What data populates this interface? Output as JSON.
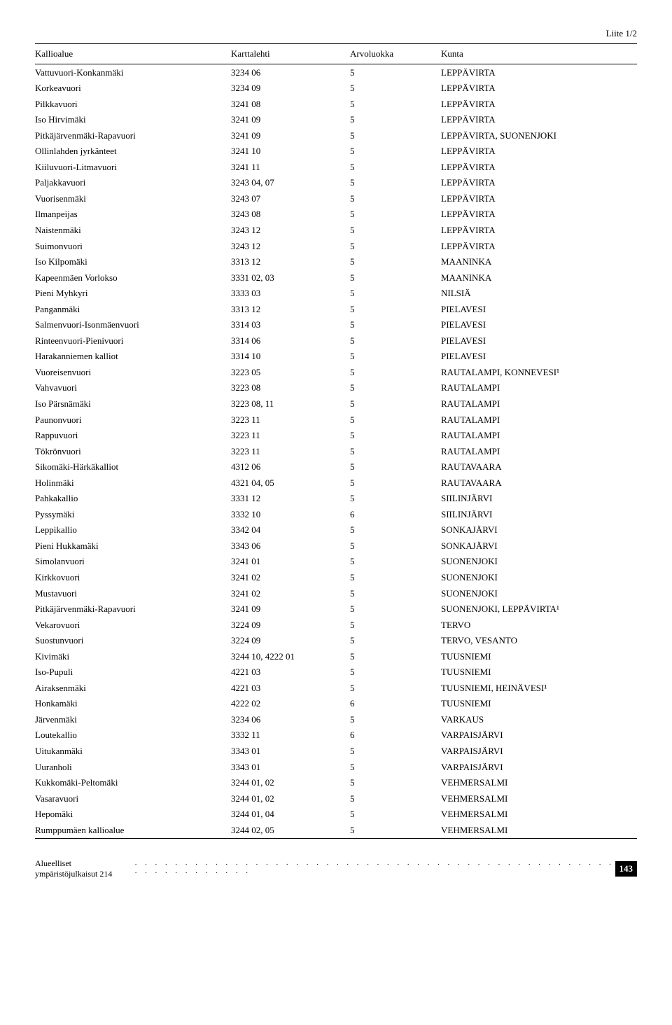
{
  "page_label": "Liite 1/2",
  "columns": [
    "Kallioalue",
    "Karttalehti",
    "Arvoluokka",
    "Kunta"
  ],
  "rows": [
    [
      "Vattuvuori-Konkanmäki",
      "3234 06",
      "5",
      "LEPPÄVIRTA"
    ],
    [
      "Korkeavuori",
      "3234 09",
      "5",
      "LEPPÄVIRTA"
    ],
    [
      "Pilkkavuori",
      "3241 08",
      "5",
      "LEPPÄVIRTA"
    ],
    [
      "Iso Hirvimäki",
      "3241 09",
      "5",
      "LEPPÄVIRTA"
    ],
    [
      "Pitkäjärvenmäki-Rapavuori",
      "3241 09",
      "5",
      "LEPPÄVIRTA, SUONENJOKI"
    ],
    [
      "Ollinlahden jyrkänteet",
      "3241 10",
      "5",
      "LEPPÄVIRTA"
    ],
    [
      "Kiiluvuori-Litmavuori",
      "3241 11",
      "5",
      "LEPPÄVIRTA"
    ],
    [
      "Paljakkavuori",
      "3243 04, 07",
      "5",
      "LEPPÄVIRTA"
    ],
    [
      "Vuorisenmäki",
      "3243 07",
      "5",
      "LEPPÄVIRTA"
    ],
    [
      "Ilmanpeijas",
      "3243 08",
      "5",
      "LEPPÄVIRTA"
    ],
    [
      "Naistenmäki",
      "3243 12",
      "5",
      "LEPPÄVIRTA"
    ],
    [
      "Suimonvuori",
      "3243 12",
      "5",
      "LEPPÄVIRTA"
    ],
    [
      "Iso Kilpomäki",
      "3313 12",
      "5",
      "MAANINKA"
    ],
    [
      "Kapeenmäen Vorlokso",
      "3331 02, 03",
      "5",
      "MAANINKA"
    ],
    [
      "Pieni Myhkyri",
      "3333 03",
      "5",
      "NILSIÄ"
    ],
    [
      "Panganmäki",
      "3313 12",
      "5",
      "PIELAVESI"
    ],
    [
      "Salmenvuori-Isonmäenvuori",
      "3314 03",
      "5",
      "PIELAVESI"
    ],
    [
      "Rinteenvuori-Pienivuori",
      "3314 06",
      "5",
      "PIELAVESI"
    ],
    [
      "Harakanniemen kalliot",
      "3314 10",
      "5",
      "PIELAVESI"
    ],
    [
      "Vuoreisenvuori",
      "3223 05",
      "5",
      "RAUTALAMPI, KONNEVESI¹"
    ],
    [
      "Vahvavuori",
      "3223 08",
      "5",
      "RAUTALAMPI"
    ],
    [
      "Iso Pärsnämäki",
      "3223 08, 11",
      "5",
      "RAUTALAMPI"
    ],
    [
      "Paunonvuori",
      "3223 11",
      "5",
      "RAUTALAMPI"
    ],
    [
      "Rappuvuori",
      "3223 11",
      "5",
      "RAUTALAMPI"
    ],
    [
      "Tökrönvuori",
      "3223 11",
      "5",
      "RAUTALAMPI"
    ],
    [
      "Sikomäki-Härkäkalliot",
      "4312 06",
      "5",
      "RAUTAVAARA"
    ],
    [
      "Holinmäki",
      "4321 04, 05",
      "5",
      "RAUTAVAARA"
    ],
    [
      "Pahkakallio",
      "3331 12",
      "5",
      "SIILINJÄRVI"
    ],
    [
      "Pyssymäki",
      "3332 10",
      "6",
      "SIILINJÄRVI"
    ],
    [
      "Leppikallio",
      "3342 04",
      "5",
      "SONKAJÄRVI"
    ],
    [
      "Pieni Hukkamäki",
      "3343 06",
      "5",
      "SONKAJÄRVI"
    ],
    [
      "Simolanvuori",
      "3241 01",
      "5",
      "SUONENJOKI"
    ],
    [
      "Kirkkovuori",
      "3241 02",
      "5",
      "SUONENJOKI"
    ],
    [
      "Mustavuori",
      "3241 02",
      "5",
      "SUONENJOKI"
    ],
    [
      "Pitkäjärvenmäki-Rapavuori",
      "3241 09",
      "5",
      "SUONENJOKI, LEPPÄVIRTA¹"
    ],
    [
      "Vekarovuori",
      "3224 09",
      "5",
      "TERVO"
    ],
    [
      "Suostunvuori",
      "3224 09",
      "5",
      "TERVO, VESANTO"
    ],
    [
      "Kivimäki",
      "3244 10, 4222 01",
      "5",
      "TUUSNIEMI"
    ],
    [
      "Iso-Pupuli",
      "4221 03",
      "5",
      "TUUSNIEMI"
    ],
    [
      "Airaksenmäki",
      "4221 03",
      "5",
      "TUUSNIEMI, HEINÄVESI¹"
    ],
    [
      "Honkamäki",
      "4222 02",
      "6",
      "TUUSNIEMI"
    ],
    [
      "Järvenmäki",
      "3234 06",
      "5",
      "VARKAUS"
    ],
    [
      "Loutekallio",
      "3332 11",
      "6",
      "VARPAISJÄRVI"
    ],
    [
      "Uitukanmäki",
      "3343 01",
      "5",
      "VARPAISJÄRVI"
    ],
    [
      "Uuranholi",
      "3343 01",
      "5",
      "VARPAISJÄRVI"
    ],
    [
      "Kukkomäki-Peltomäki",
      "3244 01, 02",
      "5",
      "VEHMERSALMI"
    ],
    [
      "Vasaravuori",
      "3244 01, 02",
      "5",
      "VEHMERSALMI"
    ],
    [
      "Hepomäki",
      "3244 01, 04",
      "5",
      "VEHMERSALMI"
    ],
    [
      "Rumppumäen kallioalue",
      "3244 02, 05",
      "5",
      "VEHMERSALMI"
    ]
  ],
  "footer_text": "Alueelliset ympäristöjulkaisut 214",
  "page_number": "143"
}
